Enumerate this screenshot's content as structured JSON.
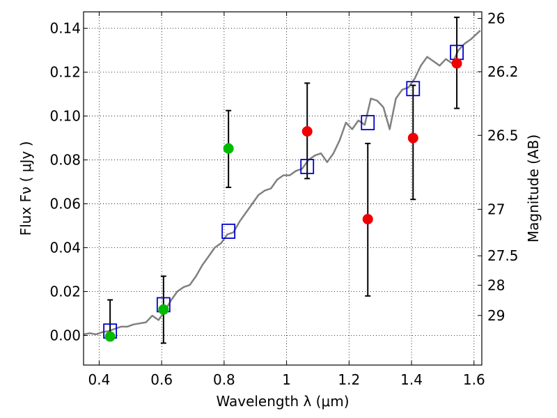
{
  "chart_data": {
    "type": "scatter",
    "xlabel": "Wavelength  λ (μm)",
    "ylabel": "Flux  Fν  ( μJy )",
    "ylabel_right": "Magnitude (AB)",
    "xlim": [
      0.35,
      1.625
    ],
    "ylim": [
      -0.0135,
      0.1475
    ],
    "grid": true,
    "x_ticks": [
      0.4,
      0.6,
      0.8,
      1.0,
      1.2,
      1.4,
      1.6
    ],
    "x_tick_labels": [
      "0.4",
      "0.6",
      "0.8",
      "1",
      "1.2",
      "1.4",
      "1.6"
    ],
    "y_ticks": [
      0.0,
      0.02,
      0.04,
      0.06,
      0.08,
      0.1,
      0.12,
      0.14
    ],
    "y_tick_labels": [
      "0.00",
      "0.02",
      "0.04",
      "0.06",
      "0.08",
      "0.10",
      "0.12",
      "0.14"
    ],
    "mag_ticks": [
      {
        "label": "26",
        "flux": 0.1445
      },
      {
        "label": "26.2",
        "flux": 0.1202
      },
      {
        "label": "26.5",
        "flux": 0.0912
      },
      {
        "label": "27",
        "flux": 0.0575
      },
      {
        "label": "27.5",
        "flux": 0.0363
      },
      {
        "label": "28",
        "flux": 0.0229
      },
      {
        "label": "29",
        "flux": 0.0091
      }
    ],
    "colors": {
      "model_line": "#808080",
      "model_box": "#0000cc",
      "detected": "#00bb00",
      "nondetected": "#ee0000",
      "errorbar": "#000000"
    },
    "series": [
      {
        "name": "model spectrum",
        "type": "line",
        "x": [
          0.35,
          0.37,
          0.39,
          0.41,
          0.43,
          0.45,
          0.47,
          0.49,
          0.51,
          0.53,
          0.55,
          0.57,
          0.59,
          0.61,
          0.63,
          0.65,
          0.67,
          0.69,
          0.71,
          0.73,
          0.75,
          0.77,
          0.79,
          0.81,
          0.83,
          0.85,
          0.87,
          0.89,
          0.91,
          0.93,
          0.95,
          0.97,
          0.99,
          1.01,
          1.03,
          1.05,
          1.07,
          1.09,
          1.11,
          1.13,
          1.15,
          1.17,
          1.19,
          1.21,
          1.23,
          1.25,
          1.27,
          1.29,
          1.31,
          1.33,
          1.35,
          1.37,
          1.39,
          1.41,
          1.43,
          1.45,
          1.47,
          1.49,
          1.51,
          1.53,
          1.55,
          1.57,
          1.59,
          1.62
        ],
        "y": [
          0.0005,
          0.001,
          0.0005,
          0.0015,
          0.002,
          0.003,
          0.004,
          0.004,
          0.005,
          0.0055,
          0.006,
          0.009,
          0.007,
          0.011,
          0.016,
          0.02,
          0.022,
          0.023,
          0.027,
          0.032,
          0.036,
          0.04,
          0.042,
          0.046,
          0.047,
          0.052,
          0.056,
          0.06,
          0.064,
          0.066,
          0.067,
          0.071,
          0.073,
          0.073,
          0.075,
          0.076,
          0.08,
          0.082,
          0.083,
          0.079,
          0.083,
          0.089,
          0.097,
          0.094,
          0.098,
          0.096,
          0.108,
          0.107,
          0.104,
          0.094,
          0.108,
          0.112,
          0.113,
          0.117,
          0.123,
          0.127,
          0.125,
          0.123,
          0.126,
          0.124,
          0.13,
          0.133,
          0.135,
          0.139
        ]
      },
      {
        "name": "model band flux",
        "type": "box",
        "x": [
          0.435,
          0.606,
          0.814,
          1.066,
          1.26,
          1.405,
          1.545
        ],
        "y": [
          0.002,
          0.014,
          0.0475,
          0.077,
          0.097,
          0.1125,
          0.129
        ]
      },
      {
        "name": "detections",
        "type": "point",
        "x": [
          0.435,
          0.606,
          0.814
        ],
        "y": [
          -0.0005,
          0.0118,
          0.0852
        ],
        "yerr_low": [
          null,
          -0.0035,
          0.0675
        ],
        "yerr_high": [
          0.0162,
          0.027,
          0.1025
        ]
      },
      {
        "name": "non-detections",
        "type": "point",
        "x": [
          1.066,
          1.26,
          1.405,
          1.545
        ],
        "y": [
          0.093,
          0.053,
          0.09,
          0.124
        ],
        "yerr_low": [
          0.0715,
          0.018,
          0.062,
          0.1035
        ],
        "yerr_high": [
          0.115,
          0.0875,
          0.114,
          0.145
        ]
      }
    ]
  }
}
